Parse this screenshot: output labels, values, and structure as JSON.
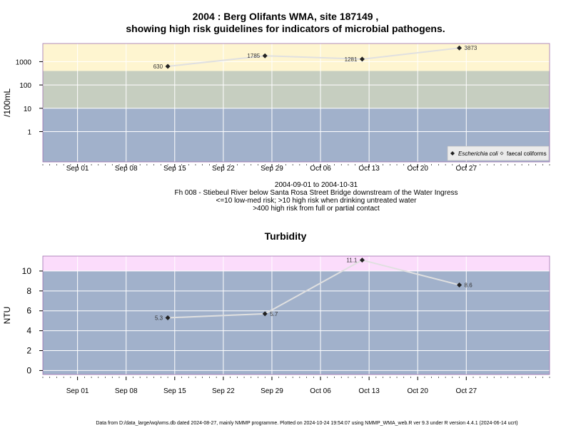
{
  "titles": {
    "main_line1": "2004 : Berg Olifants WMA, site 187149 ,",
    "main_line2": "showing high risk guidelines for indicators of microbial pathogens.",
    "caption_dates": "2004-09-01 to 2004-10-31",
    "caption_site": "Fh 008 - Stiebeul River below Santa Rosa Street Bridge downstream of the Water Ingress",
    "caption_risk1": "<=10 low-med risk; >10 high risk when drinking untreated water",
    "caption_risk2": ">400 high risk from full or partial contact",
    "footer": "Data from D:/data_large/wq/wms.db dated 2024-08-27, mainly NMMP programme. Plotted on 2024-10-24 19:54:07 using NMMP_WMA_web.R ver 9.3 under R version 4.4.1 (2024-06-14 ucrt)"
  },
  "colors": {
    "high_risk_band": "#fef5d0",
    "contact_band": "#c6cec0",
    "low_band": "#a1b1cb",
    "above_band": "#fbdcfb",
    "border": "#a070b0",
    "gridline": "#ffffff",
    "series_line": "#e0e0e0",
    "point": "#222222"
  },
  "chart_data": [
    {
      "type": "line",
      "title": "",
      "xlabel": "",
      "ylabel": "/100mL",
      "yscale": "log",
      "ylim": [
        0.05,
        6000
      ],
      "yticks": [
        1,
        10,
        100,
        1000
      ],
      "ytick_labels": [
        "1",
        "10",
        "100",
        "1000"
      ],
      "xlim": [
        "2004-08-27",
        "2004-11-08"
      ],
      "xticks": [
        "2004-09-01",
        "2004-09-08",
        "2004-09-15",
        "2004-09-22",
        "2004-09-29",
        "2004-10-06",
        "2004-10-13",
        "2004-10-20",
        "2004-10-27"
      ],
      "xtick_labels": [
        "Sep 01",
        "Sep 08",
        "Sep 15",
        "Sep 22",
        "Sep 29",
        "Oct 06",
        "Oct 13",
        "Oct 20",
        "Oct 27"
      ],
      "bands": [
        {
          "from": 0.05,
          "to": 10
        },
        {
          "from": 10,
          "to": 400
        },
        {
          "from": 400,
          "to": 6000
        }
      ],
      "series": [
        {
          "name": "Escherichia coli",
          "x": [
            "2004-09-14",
            "2004-09-28",
            "2004-10-12",
            "2004-10-26"
          ],
          "values": [
            630,
            1785,
            1281,
            3873
          ],
          "labels": [
            "630",
            "1785",
            "1281",
            "3873"
          ]
        },
        {
          "name": "faecal coliforms",
          "x": [],
          "values": []
        }
      ],
      "legend": "bottom-right",
      "grid": true
    },
    {
      "type": "line",
      "title": "Turbidity",
      "xlabel": "",
      "ylabel": "NTU",
      "yscale": "linear",
      "ylim": [
        -0.4,
        11.5
      ],
      "yticks": [
        0,
        2,
        4,
        6,
        8,
        10
      ],
      "ytick_labels": [
        "0",
        "2",
        "4",
        "6",
        "8",
        "10"
      ],
      "xlim": [
        "2004-08-27",
        "2004-11-08"
      ],
      "xticks": [
        "2004-09-01",
        "2004-09-08",
        "2004-09-15",
        "2004-09-22",
        "2004-09-29",
        "2004-10-06",
        "2004-10-13",
        "2004-10-20",
        "2004-10-27"
      ],
      "xtick_labels": [
        "Sep 01",
        "Sep 08",
        "Sep 15",
        "Sep 22",
        "Sep 29",
        "Oct 06",
        "Oct 13",
        "Oct 20",
        "Oct 27"
      ],
      "bands": [
        {
          "from": -0.4,
          "to": 10
        },
        {
          "from": 10,
          "to": 11.5
        }
      ],
      "series": [
        {
          "name": "",
          "x": [
            "2004-09-14",
            "2004-09-28",
            "2004-10-12",
            "2004-10-26"
          ],
          "values": [
            5.3,
            5.7,
            11.1,
            8.6
          ],
          "labels": [
            "5.3",
            "5.7",
            "11.1",
            "8.6"
          ]
        }
      ],
      "grid": true
    }
  ]
}
